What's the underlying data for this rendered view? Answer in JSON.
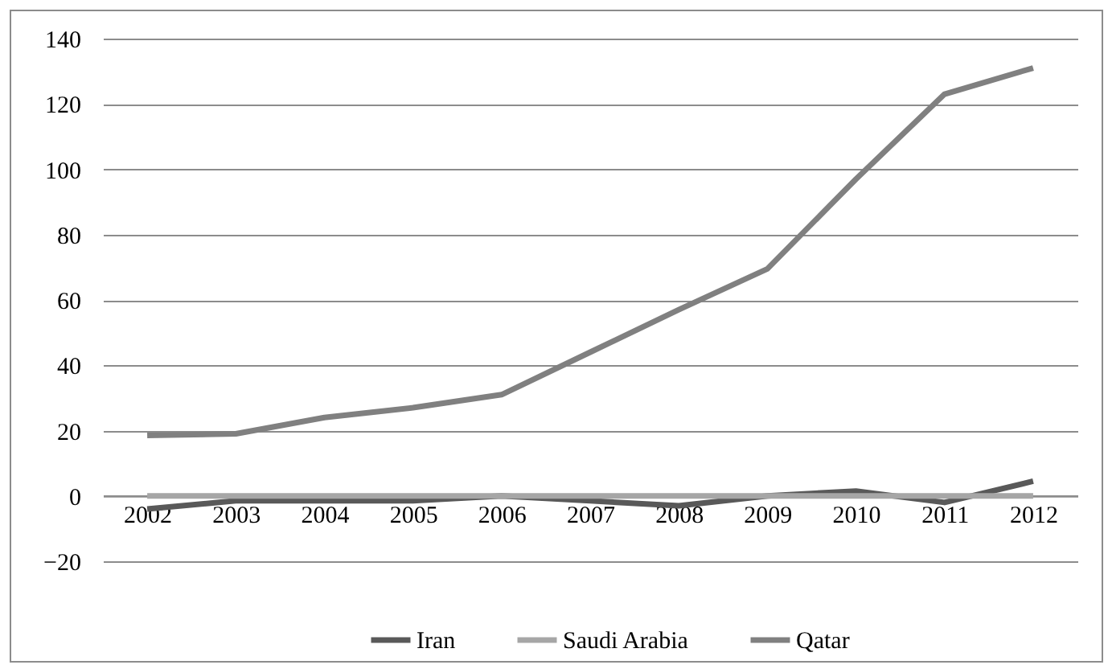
{
  "chart_data": {
    "type": "line",
    "categories": [
      "2002",
      "2003",
      "2004",
      "2005",
      "2006",
      "2007",
      "2008",
      "2009",
      "2010",
      "2011",
      "2012"
    ],
    "series": [
      {
        "name": "Iran",
        "color": "#595959",
        "values": [
          -4,
          -1.5,
          -1.5,
          -1.5,
          0,
          -1.5,
          -3,
          0,
          1.5,
          -2,
          4.5
        ]
      },
      {
        "name": "Saudi Arabia",
        "color": "#a6a6a6",
        "values": [
          0,
          0,
          0,
          0,
          0,
          0,
          0,
          0,
          0,
          0,
          0
        ]
      },
      {
        "name": "Qatar",
        "color": "#808080",
        "values": [
          18.5,
          19,
          24,
          27,
          31,
          44,
          57,
          69.5,
          97,
          123,
          131
        ]
      }
    ],
    "ylim": [
      -20,
      140
    ],
    "yticks": [
      -20,
      0,
      20,
      40,
      60,
      80,
      100,
      120,
      140
    ],
    "grid": "y",
    "legend": "bottom",
    "marker": "none",
    "line_style": "solid"
  }
}
